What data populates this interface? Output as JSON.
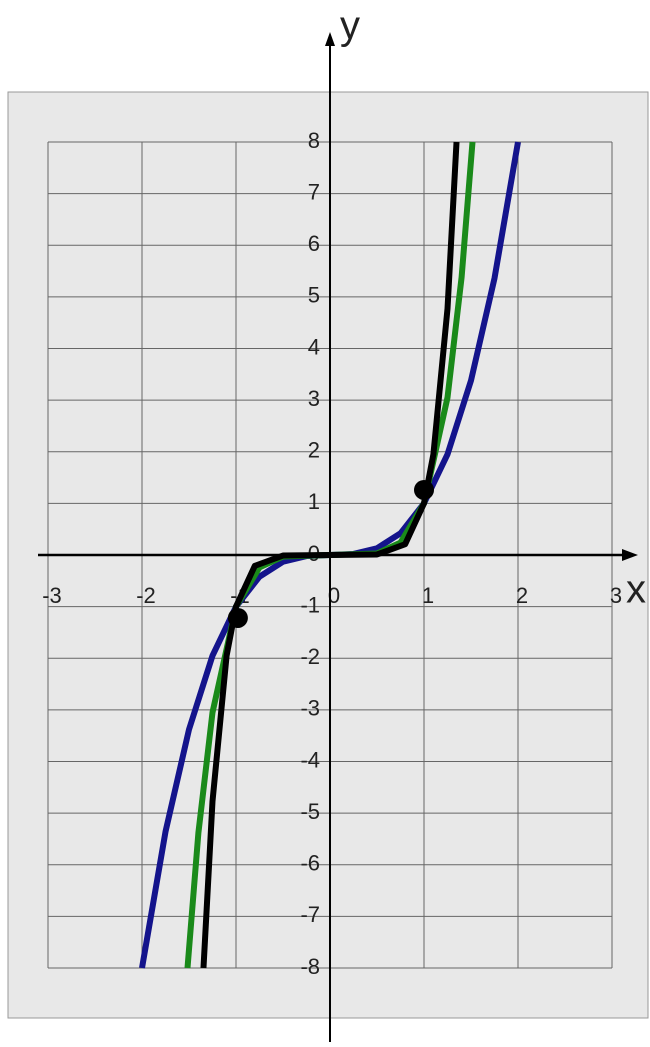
{
  "chart_data": {
    "type": "line",
    "x_label": "x",
    "y_label": "y",
    "xlim": [
      -3,
      3
    ],
    "ylim": [
      -8,
      8
    ],
    "xticks": [
      -3,
      -2,
      -1,
      0,
      1,
      2,
      3
    ],
    "yticks": [
      -8,
      -7,
      -6,
      -5,
      -4,
      -3,
      -2,
      -1,
      0,
      1,
      2,
      3,
      4,
      5,
      6,
      7,
      8
    ],
    "grid": true,
    "series": [
      {
        "color": "#14148c",
        "x": [
          -2,
          -1.75,
          -1.5,
          -1.25,
          -1,
          -0.75,
          -0.5,
          -0.25,
          0,
          0.25,
          0.5,
          0.75,
          1,
          1.25,
          1.5,
          1.75,
          2
        ],
        "values": [
          -8,
          -5.36,
          -3.38,
          -1.95,
          -1,
          -0.42,
          -0.13,
          -0.02,
          0,
          0.02,
          0.13,
          0.42,
          1,
          1.95,
          3.38,
          5.36,
          8
        ]
      },
      {
        "color": "#1a8a1a",
        "x": [
          -1.516,
          -1.4,
          -1.25,
          -1,
          -0.75,
          -0.5,
          0,
          0.5,
          0.75,
          1,
          1.25,
          1.4,
          1.516
        ],
        "values": [
          -8,
          -5.38,
          -3.05,
          -1,
          -0.24,
          -0.03,
          0,
          0.03,
          0.24,
          1,
          3.05,
          5.38,
          8
        ]
      },
      {
        "color": "#000000",
        "x": [
          -1.346,
          -1.25,
          -1.1,
          -1,
          -0.8,
          -0.5,
          0,
          0.5,
          0.8,
          1,
          1.1,
          1.25,
          1.346
        ],
        "values": [
          -8,
          -4.77,
          -1.95,
          -1,
          -0.21,
          -0.01,
          0,
          0.01,
          0.21,
          1,
          1.95,
          4.77,
          8
        ]
      }
    ],
    "markers": {
      "color": "#000000",
      "x": [
        -0.98,
        1
      ],
      "values": [
        -1.22,
        1.26
      ]
    }
  }
}
